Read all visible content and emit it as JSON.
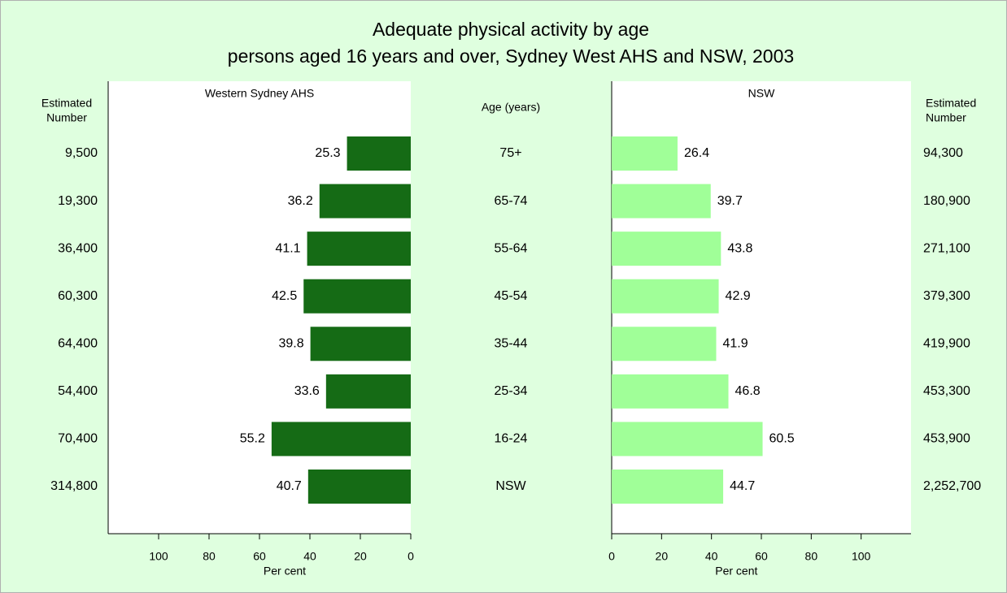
{
  "title": "Adequate physical activity by age",
  "subtitle": "persons aged 16 years and over, Sydney West AHS and NSW, 2003",
  "category_label": "Age (years)",
  "chart_data": [
    {
      "type": "bar",
      "orientation": "horizontal",
      "reversed": true,
      "title": "Western Sydney AHS",
      "categories": [
        "75+",
        "65-74",
        "55-64",
        "45-54",
        "35-44",
        "25-34",
        "16-24",
        "NSW"
      ],
      "values": [
        25.3,
        36.2,
        41.1,
        42.5,
        39.8,
        33.6,
        55.2,
        40.7
      ],
      "color": "#156b15",
      "xlim": [
        0,
        120
      ],
      "xticks": [
        0,
        20,
        40,
        60,
        80,
        100
      ],
      "xlabel": "Per cent",
      "estimate_label": [
        "Estimated",
        "Number"
      ],
      "estimates": [
        "9,500",
        "19,300",
        "36,400",
        "60,300",
        "64,400",
        "54,400",
        "70,400",
        "314,800"
      ]
    },
    {
      "type": "bar",
      "orientation": "horizontal",
      "reversed": false,
      "title": "NSW",
      "values": [
        26.4,
        39.7,
        43.8,
        42.9,
        41.9,
        46.8,
        60.5,
        44.7
      ],
      "color": "#a0ff98",
      "xlim": [
        0,
        120
      ],
      "xticks": [
        0,
        20,
        40,
        60,
        80,
        100
      ],
      "xlabel": "Per cent",
      "estimate_label": [
        "Estimated",
        "Number"
      ],
      "estimates": [
        "94,300",
        "180,900",
        "271,100",
        "379,300",
        "419,900",
        "453,300",
        "453,900",
        "2,252,700"
      ]
    }
  ]
}
